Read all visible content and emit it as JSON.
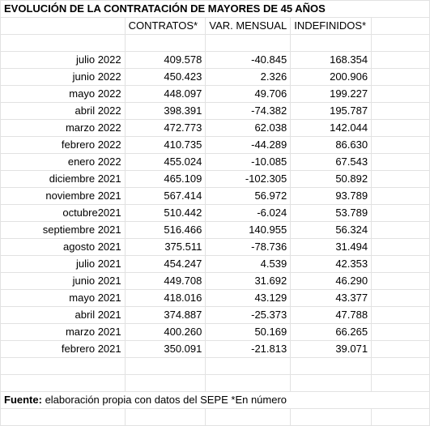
{
  "title": "EVOLUCIÓN DE LA CONTRATACIÓN DE MAYORES DE 45 AÑOS",
  "headers": [
    "CONTRATOS*",
    "VAR. MENSUAL",
    "INDEFINIDOS*"
  ],
  "rows": [
    {
      "month": "julio 2022",
      "contratos": "409.578",
      "var": "-40.845",
      "indef": "168.354"
    },
    {
      "month": "junio 2022",
      "contratos": "450.423",
      "var": "2.326",
      "indef": "200.906"
    },
    {
      "month": "mayo 2022",
      "contratos": "448.097",
      "var": "49.706",
      "indef": "199.227"
    },
    {
      "month": "abril 2022",
      "contratos": "398.391",
      "var": "-74.382",
      "indef": "195.787"
    },
    {
      "month": "marzo 2022",
      "contratos": "472.773",
      "var": "62.038",
      "indef": "142.044"
    },
    {
      "month": "febrero 2022",
      "contratos": "410.735",
      "var": "-44.289",
      "indef": "86.630"
    },
    {
      "month": "enero 2022",
      "contratos": "455.024",
      "var": "-10.085",
      "indef": "67.543"
    },
    {
      "month": "diciembre 2021",
      "contratos": "465.109",
      "var": "-102.305",
      "indef": "50.892"
    },
    {
      "month": "noviembre 2021",
      "contratos": "567.414",
      "var": "56.972",
      "indef": "93.789"
    },
    {
      "month": "octubre2021",
      "contratos": "510.442",
      "var": "-6.024",
      "indef": "53.789"
    },
    {
      "month": "septiembre 2021",
      "contratos": "516.466",
      "var": "140.955",
      "indef": "56.324"
    },
    {
      "month": "agosto 2021",
      "contratos": "375.511",
      "var": "-78.736",
      "indef": "31.494"
    },
    {
      "month": "julio 2021",
      "contratos": "454.247",
      "var": "4.539",
      "indef": "42.353"
    },
    {
      "month": "junio 2021",
      "contratos": "449.708",
      "var": "31.692",
      "indef": "46.290"
    },
    {
      "month": "mayo 2021",
      "contratos": "418.016",
      "var": "43.129",
      "indef": "43.377"
    },
    {
      "month": "abril 2021",
      "contratos": "374.887",
      "var": "-25.373",
      "indef": "47.788"
    },
    {
      "month": "marzo 2021",
      "contratos": "400.260",
      "var": "50.169",
      "indef": "66.265"
    },
    {
      "month": "febrero 2021",
      "contratos": "350.091",
      "var": "-21.813",
      "indef": "39.071"
    }
  ],
  "footer": {
    "label": "Fuente:",
    "text": " elaboración propia con datos del SEPE *En número"
  }
}
